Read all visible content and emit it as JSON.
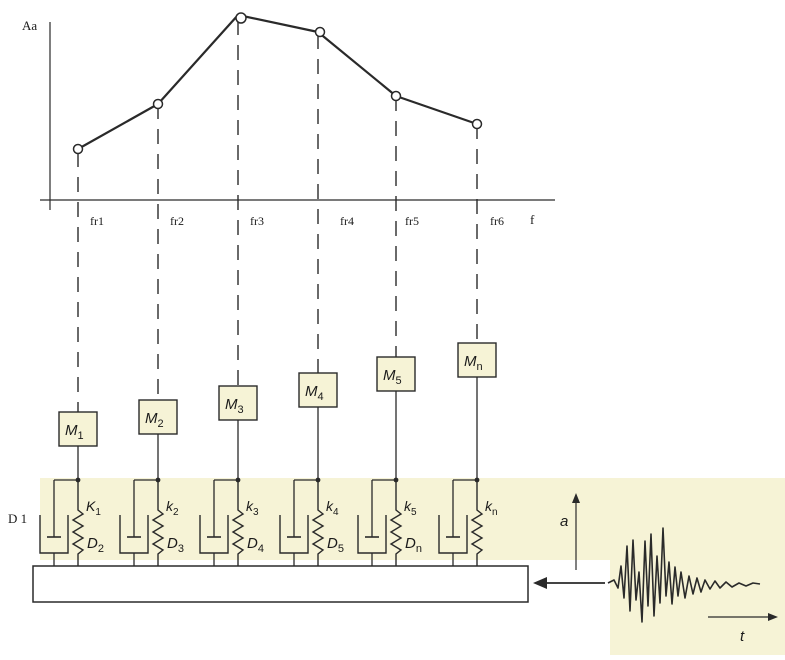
{
  "colors": {
    "line": "#2a2a2a",
    "ink": "#1a1a1a",
    "panel": "#f6f3d6",
    "white": "#ffffff"
  },
  "spectrum": {
    "y_axis_label": "Aa",
    "x_axis_label": "f",
    "frequency_labels": [
      "fr1",
      "fr2",
      "fr3",
      "fr4",
      "fr5",
      "fr6"
    ]
  },
  "oscillators": [
    {
      "mass": "M",
      "mass_sub": "1",
      "spring": "K",
      "spring_sub": "1",
      "damper": "D",
      "damper_sub": "2"
    },
    {
      "mass": "M",
      "mass_sub": "2",
      "spring": "k",
      "spring_sub": "2",
      "damper": "D",
      "damper_sub": "3"
    },
    {
      "mass": "M",
      "mass_sub": "3",
      "spring": "k",
      "spring_sub": "3",
      "damper": "D",
      "damper_sub": "4"
    },
    {
      "mass": "M",
      "mass_sub": "4",
      "spring": "k",
      "spring_sub": "4",
      "damper": "D",
      "damper_sub": "5"
    },
    {
      "mass": "M",
      "mass_sub": "5",
      "spring": "k",
      "spring_sub": "5",
      "damper": "D",
      "damper_sub": "n"
    },
    {
      "mass": "M",
      "mass_sub": "n",
      "spring": "k",
      "spring_sub": "n",
      "damper": "",
      "damper_sub": ""
    }
  ],
  "side_label": "D 1",
  "input_signal": {
    "y_label": "a",
    "x_label": "t"
  }
}
